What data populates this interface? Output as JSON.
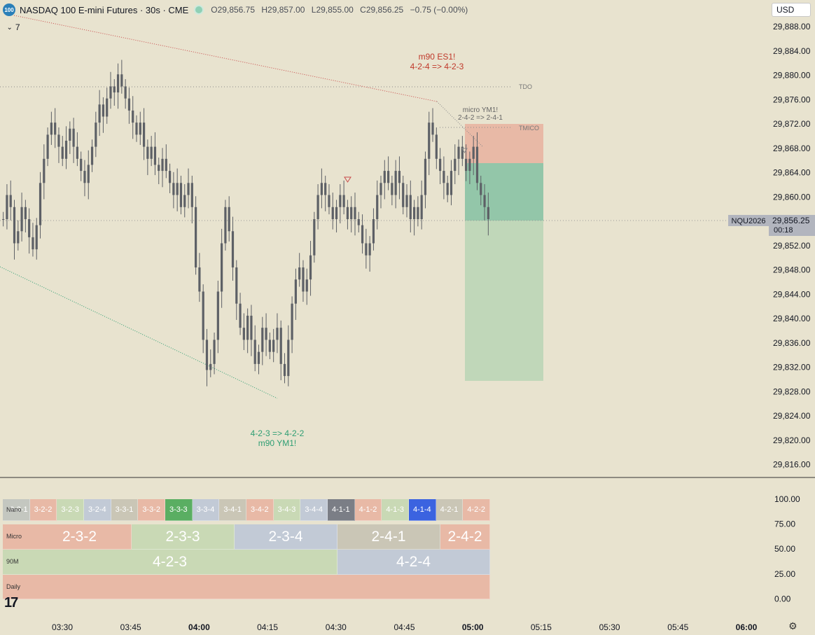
{
  "header": {
    "badge": "100",
    "title": "NASDAQ 100 E-mini Futures · 30s · CME",
    "open": "O29,856.75",
    "high": "H29,857.00",
    "low": "L29,855.00",
    "close": "C29,856.25",
    "change": "−0.75 (−0.00%)",
    "interval_toggle": "7"
  },
  "currency": "USD",
  "price_axis": [
    "29,888.00",
    "29,884.00",
    "29,880.00",
    "29,876.00",
    "29,872.00",
    "29,868.00",
    "29,864.00",
    "29,860.00",
    "29,856.00",
    "29,852.00",
    "29,848.00",
    "29,844.00",
    "29,840.00",
    "29,836.00",
    "29,832.00",
    "29,828.00",
    "29,824.00",
    "29,820.00",
    "29,816.00"
  ],
  "current_price": {
    "symbol": "NQU2026",
    "price": "29,856.25",
    "countdown": "00:18"
  },
  "indicator_axis": [
    "100.00",
    "75.00",
    "50.00",
    "25.00",
    "0.00"
  ],
  "time_axis": [
    "03:30",
    "03:45",
    "04:00",
    "04:15",
    "04:30",
    "04:45",
    "05:00",
    "05:15",
    "05:30",
    "05:45",
    "06:00"
  ],
  "annotations": {
    "top_red_1": "m90 ES1!",
    "top_red_2": "4-2-4 => 4-2-3",
    "micro_1": "micro YM1!",
    "micro_2": "2-4-2 => 2-4-1",
    "bottom_green_1": "4-2-3 => 4-2-2",
    "bottom_green_2": "m90 YM1!",
    "tdo": "TDO",
    "tmico": "TMICO"
  },
  "strat_table": {
    "row_labels": {
      "nano": "Nano",
      "micro": "Micro",
      "m90": "90M",
      "daily": "Daily"
    },
    "nano": [
      "3-2-1",
      "3-2-2",
      "3-2-3",
      "3-2-4",
      "3-3-1",
      "3-3-2",
      "3-3-3",
      "3-3-4",
      "3-4-1",
      "3-4-2",
      "3-4-3",
      "3-4-4",
      "4-1-1",
      "4-1-2",
      "4-1-3",
      "4-1-4",
      "4-2-1",
      "4-2-2"
    ],
    "micro": [
      "2-3-2",
      "2-3-3",
      "2-3-4",
      "2-4-1",
      "2-4-2"
    ],
    "m90": [
      "4-2-3",
      "4-2-4"
    ],
    "daily": [
      ""
    ]
  },
  "colors": {
    "bg": "#e8e3cf",
    "candle": "#5d6066",
    "red_line": "#c94a4a",
    "green_line": "#2e9e73",
    "stop_zone": "#e8b9a6",
    "target_zone": "#93c6a9",
    "target_zone_light": "#c0d7b9"
  },
  "chart_data": {
    "type": "candlestick",
    "instrument": "NQU2026",
    "interval": "30s",
    "ylim": [
      29814,
      29890
    ],
    "x_ticks": [
      "03:30",
      "03:45",
      "04:00",
      "04:15",
      "04:30",
      "04:45",
      "05:00",
      "05:15",
      "05:30",
      "05:45",
      "06:00"
    ],
    "last": {
      "open": 29856.75,
      "high": 29857.0,
      "low": 29855.0,
      "close": 29856.25
    },
    "closes": [
      29856,
      29860,
      29858,
      29852,
      29854,
      29858,
      29856,
      29853,
      29851,
      29855,
      29862,
      29866,
      29870,
      29872,
      29870,
      29868,
      29866,
      29869,
      29871,
      29868,
      29866,
      29864,
      29862,
      29865,
      29868,
      29872,
      29875,
      29873,
      29876,
      29878,
      29877,
      29880,
      29878,
      29876,
      29874,
      29872,
      29870,
      29872,
      29868,
      29866,
      29868,
      29865,
      29864,
      29866,
      29864,
      29862,
      29860,
      29862,
      29858,
      29860,
      29862,
      29858,
      29848,
      29844,
      29836,
      29831,
      29832,
      29836,
      29844,
      29852,
      29858,
      29854,
      29848,
      29842,
      29838,
      29836,
      29840,
      29836,
      29832,
      29834,
      29838,
      29836,
      29834,
      29836,
      29838,
      29832,
      29830,
      29836,
      29842,
      29846,
      29848,
      29844,
      29846,
      29850,
      29856,
      29860,
      29862,
      29860,
      29858,
      29856,
      29858,
      29860,
      29858,
      29856,
      29858,
      29856,
      29855,
      29852,
      29850,
      29852,
      29856,
      29860,
      29862,
      29864,
      29862,
      29860,
      29864,
      29862,
      29858,
      29860,
      29856,
      29858,
      29856,
      29860,
      29866,
      29872,
      29870,
      29866,
      29864,
      29862,
      29860,
      29864,
      29866,
      29868,
      29866,
      29864,
      29866,
      29868,
      29862,
      29860,
      29858,
      29856
    ]
  }
}
